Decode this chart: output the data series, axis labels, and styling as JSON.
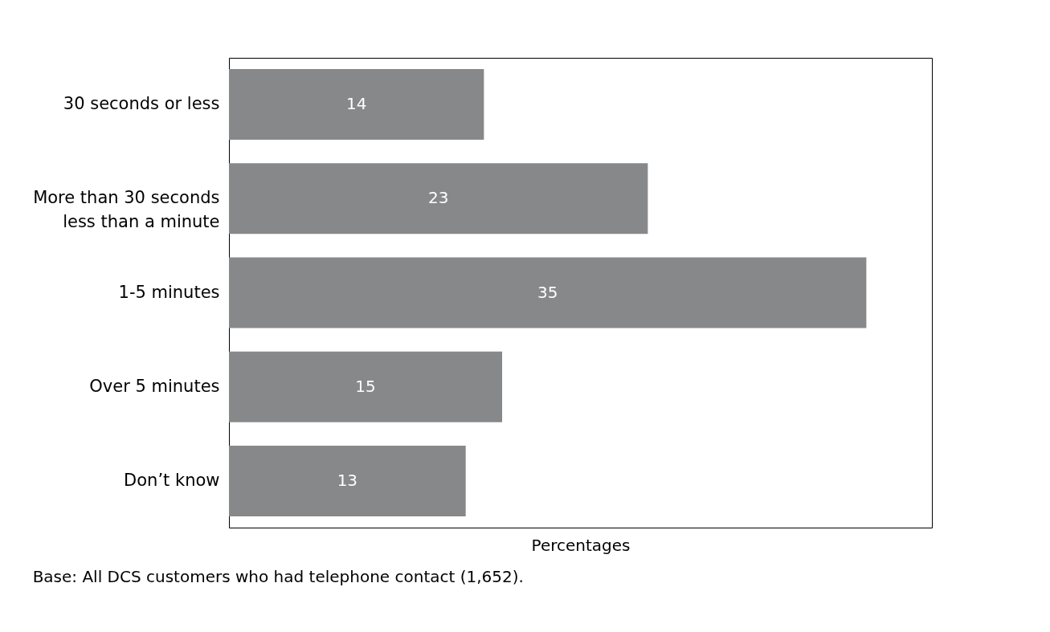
{
  "chart_data": {
    "type": "bar",
    "orientation": "horizontal",
    "categories": [
      "30 seconds or less",
      "More than 30 seconds\nless than a minute",
      "1-5 minutes",
      "Over 5 minutes",
      "Don’t know"
    ],
    "values": [
      14,
      23,
      35,
      15,
      13
    ],
    "color": "#87888a",
    "xlim": [
      0,
      38.6
    ],
    "xlabel": "Percentages",
    "data_labels": true,
    "grid": false,
    "tick_labels": "y",
    "annotations": [
      "Base: All DCS customers who had telephone contact (1,652)."
    ]
  }
}
